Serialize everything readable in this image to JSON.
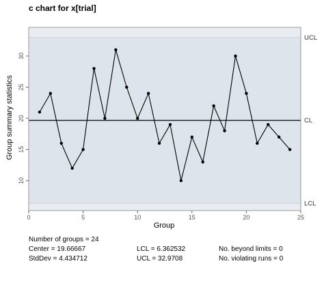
{
  "chart_data": {
    "type": "line",
    "title": "c chart for x[trial]",
    "xlabel": "Group",
    "ylabel": "Group summary statistics",
    "xlim": [
      0,
      25
    ],
    "ylim": [
      5.2,
      34.6
    ],
    "x_ticks": [
      0,
      5,
      10,
      15,
      20,
      25
    ],
    "y_ticks": [
      10,
      15,
      20,
      25,
      30
    ],
    "x": [
      1,
      2,
      3,
      4,
      5,
      6,
      7,
      8,
      9,
      10,
      11,
      12,
      13,
      14,
      15,
      16,
      17,
      18,
      19,
      20,
      21,
      22,
      23,
      24
    ],
    "values": [
      21,
      24,
      16,
      12,
      15,
      28,
      20,
      31,
      25,
      20,
      24,
      16,
      19,
      10,
      17,
      13,
      22,
      18,
      30,
      24,
      16,
      19,
      17,
      15
    ],
    "center": 19.66667,
    "lcl": 6.362532,
    "ucl": 32.9708,
    "control_labels": {
      "ucl": "UCL",
      "cl": "CL",
      "lcl": "LCL"
    },
    "grid": false,
    "colors": {
      "band": "#dde4ec",
      "outer_band": "#e9ecf0",
      "line": "#000000",
      "center_line": "#000000",
      "frame": "#9a9a9a"
    }
  },
  "stats": {
    "number_of_groups": "Number of groups = 24",
    "center": "Center = 19.66667",
    "stddev": "StdDev = 4.434712",
    "lcl": "LCL = 6.362532",
    "ucl": "UCL = 32.9708",
    "beyond_limits": "No. beyond limits = 0",
    "violating_runs": "No. violating runs = 0"
  }
}
